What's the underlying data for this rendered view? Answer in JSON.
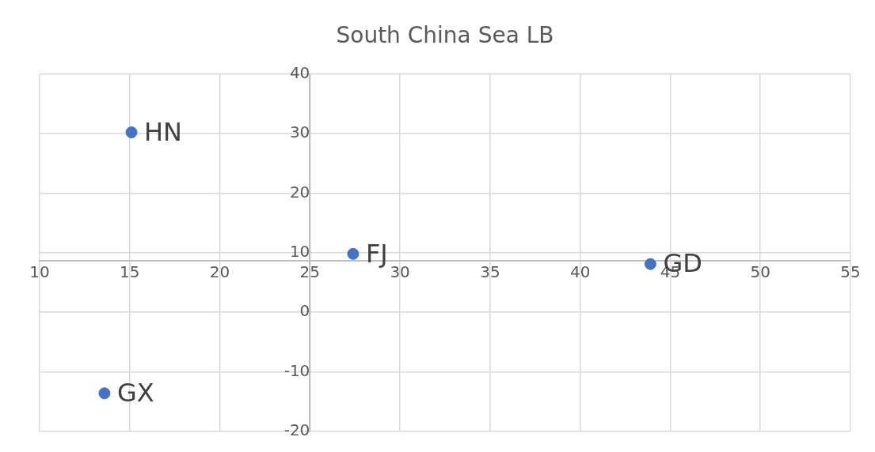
{
  "chart_data": {
    "type": "scatter",
    "title": "South China Sea LB",
    "series": [
      {
        "color": "#4472c4",
        "x": [
          15.1,
          27.4,
          43.9,
          13.6
        ],
        "values": [
          30.2,
          9.8,
          8.1,
          -13.6
        ]
      }
    ],
    "annotations": [
      {
        "text": "HN",
        "x": 15.1,
        "y": 30.2
      },
      {
        "text": "FJ",
        "x": 27.4,
        "y": 9.8
      },
      {
        "text": "GD",
        "x": 43.9,
        "y": 8.1
      },
      {
        "text": "GX",
        "x": 13.6,
        "y": -13.6
      }
    ],
    "xlim": [
      10,
      55
    ],
    "xticks": [
      10,
      15,
      20,
      25,
      30,
      35,
      40,
      45,
      50,
      55
    ],
    "ylim": [
      -20,
      40
    ],
    "yticks": [
      -20,
      -10,
      0,
      10,
      20,
      30,
      40
    ],
    "grid": true,
    "marker": "circle",
    "legend": false
  }
}
